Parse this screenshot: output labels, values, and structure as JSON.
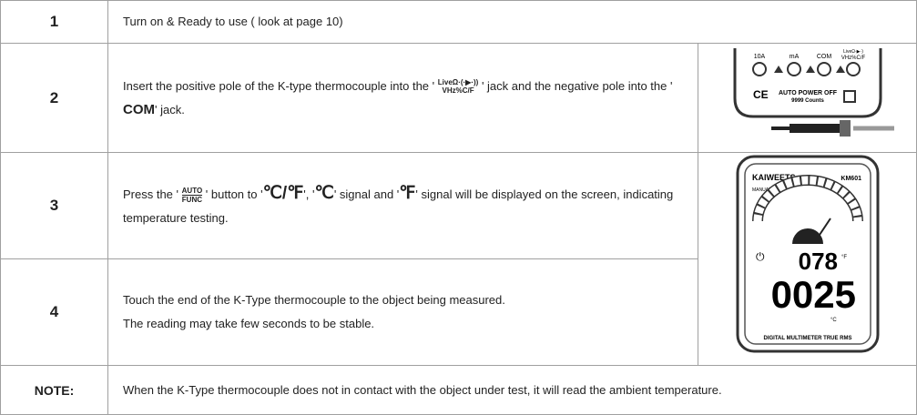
{
  "rows": [
    {
      "number": "1",
      "text": "Turn on & Ready to use ( look at page 10)"
    },
    {
      "number": "2",
      "parts": [
        "Insert the positive pole of the K-type thermocouple into the '",
        "LiveΩ·(·▶·))",
        "VHz%C/F",
        "' jack and the negative pole into the '",
        "COM",
        "' jack."
      ],
      "image": {
        "labels": [
          "10A",
          "mA",
          "COM",
          "LiveΩ·▶·)",
          "VHz%C/F",
          "AUTO POWER OFF",
          "9999 Counts",
          "CE"
        ]
      }
    },
    {
      "number": "3",
      "parts": [
        "Press the '",
        "AUTO",
        "FUNC",
        "' button to '",
        "℃/℉",
        "', '",
        "℃",
        "' signal and '",
        "℉",
        "' signal will be displayed on the screen, indicating temperature testing."
      ]
    },
    {
      "number": "4",
      "lines": [
        "Touch the end of the K-Type thermocouple to the object being measured.",
        "The reading may take few seconds to be stable."
      ]
    },
    {
      "number": "NOTE:",
      "text": "When the K-Type thermocouple does not in contact with the object under test, it will read the ambient temperature."
    }
  ],
  "meter_image": {
    "brand": "KAIWEETS",
    "model": "KM601",
    "mode": "MANUAL",
    "small_reading": "078",
    "small_unit": "°F",
    "big_reading": "0025",
    "big_unit": "°C",
    "footer": "DIGITAL MULTIMETER TRUE RMS"
  }
}
